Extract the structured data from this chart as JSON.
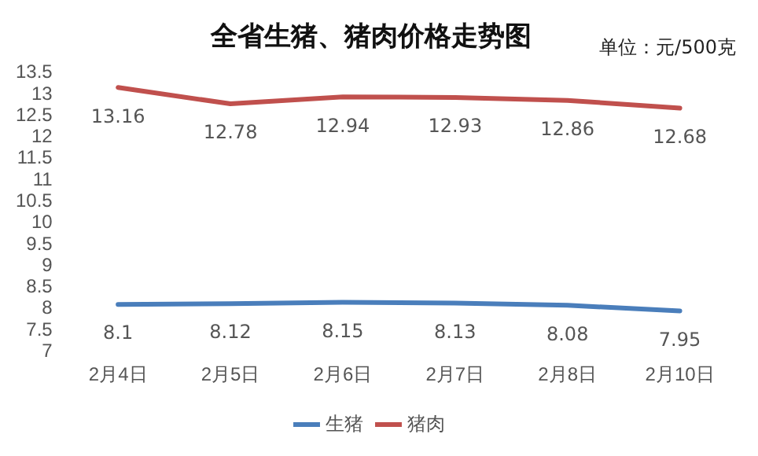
{
  "chart_data": {
    "type": "line",
    "title": "全省生猪、猪肉价格走势图",
    "annotations": [
      "单位：元/500克"
    ],
    "categories": [
      "2月4日",
      "2月5日",
      "2月6日",
      "2月7日",
      "2月8日",
      "2月10日"
    ],
    "series": [
      {
        "name": "生猪",
        "color": "#4a7ebb",
        "values": [
          8.1,
          8.12,
          8.15,
          8.13,
          8.08,
          7.95
        ]
      },
      {
        "name": "猪肉",
        "color": "#c0504d",
        "values": [
          13.16,
          12.78,
          12.94,
          12.93,
          12.86,
          12.68
        ]
      }
    ],
    "ylim": [
      7,
      13.5
    ],
    "yticks": [
      7,
      7.5,
      8,
      8.5,
      9,
      9.5,
      10,
      10.5,
      11,
      11.5,
      12,
      12.5,
      13,
      13.5
    ],
    "grid": false,
    "legend": "bottom",
    "marker": "none",
    "line_style": "solid",
    "data_labels": true
  }
}
